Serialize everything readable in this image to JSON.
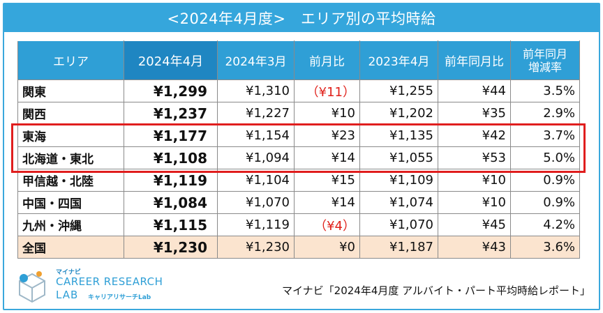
{
  "title": "<2024年4月度>　エリア別の平均時給",
  "table": {
    "headers": [
      "エリア",
      "2024年4月",
      "2024年3月",
      "前月比",
      "2023年4月",
      "前年同月比",
      "前年同月\n増減率"
    ],
    "header_multiline": [
      "前年同月",
      "増減率"
    ],
    "rows": [
      {
        "region": "関東",
        "apr2024": "¥1,299",
        "mar2024": "¥1,310",
        "mom": "（¥11）",
        "apr2023": "¥1,255",
        "yoy": "¥44",
        "yoy_rate": "3.5%",
        "mom_negative": true
      },
      {
        "region": "関西",
        "apr2024": "¥1,237",
        "mar2024": "¥1,227",
        "mom": "¥10",
        "apr2023": "¥1,202",
        "yoy": "¥35",
        "yoy_rate": "2.9%",
        "mom_negative": false
      },
      {
        "region": "東海",
        "apr2024": "¥1,177",
        "mar2024": "¥1,154",
        "mom": "¥23",
        "apr2023": "¥1,135",
        "yoy": "¥42",
        "yoy_rate": "3.7%",
        "mom_negative": false
      },
      {
        "region": "北海道・東北",
        "apr2024": "¥1,108",
        "mar2024": "¥1,094",
        "mom": "¥14",
        "apr2023": "¥1,055",
        "yoy": "¥53",
        "yoy_rate": "5.0%",
        "mom_negative": false
      },
      {
        "region": "甲信越・北陸",
        "apr2024": "¥1,119",
        "mar2024": "¥1,104",
        "mom": "¥15",
        "apr2023": "¥1,109",
        "yoy": "¥10",
        "yoy_rate": "0.9%",
        "mom_negative": false
      },
      {
        "region": "中国・四国",
        "apr2024": "¥1,084",
        "mar2024": "¥1,070",
        "mom": "¥14",
        "apr2023": "¥1,074",
        "yoy": "¥10",
        "yoy_rate": "0.9%",
        "mom_negative": false
      },
      {
        "region": "九州・沖縄",
        "apr2024": "¥1,115",
        "mar2024": "¥1,119",
        "mom": "（¥4）",
        "apr2023": "¥1,070",
        "yoy": "¥45",
        "yoy_rate": "4.2%",
        "mom_negative": true
      },
      {
        "region": "全国",
        "apr2024": "¥1,230",
        "mar2024": "¥1,230",
        "mom": "¥0",
        "apr2023": "¥1,187",
        "yoy": "¥43",
        "yoy_rate": "3.6%",
        "mom_negative": false
      }
    ],
    "highlighted_rows": [
      "東海",
      "北海道・東北"
    ]
  },
  "logo": {
    "small": "マイナビ",
    "main": "CAREER RESEARCH",
    "lab": "LAB",
    "sub": "キャリアリサーチLab",
    "icon": "cube-logo-icon"
  },
  "source": "マイナビ「2024年4月度 アルバイト・パート平均時給レポート」",
  "colors": {
    "header_blue": "#2f9fd6",
    "header_current": "#1f86c2",
    "title_bar": "#35a6dc",
    "negative_red": "#e0201a",
    "highlight_border": "#e01e1e",
    "total_row": "#fbe4cf"
  }
}
